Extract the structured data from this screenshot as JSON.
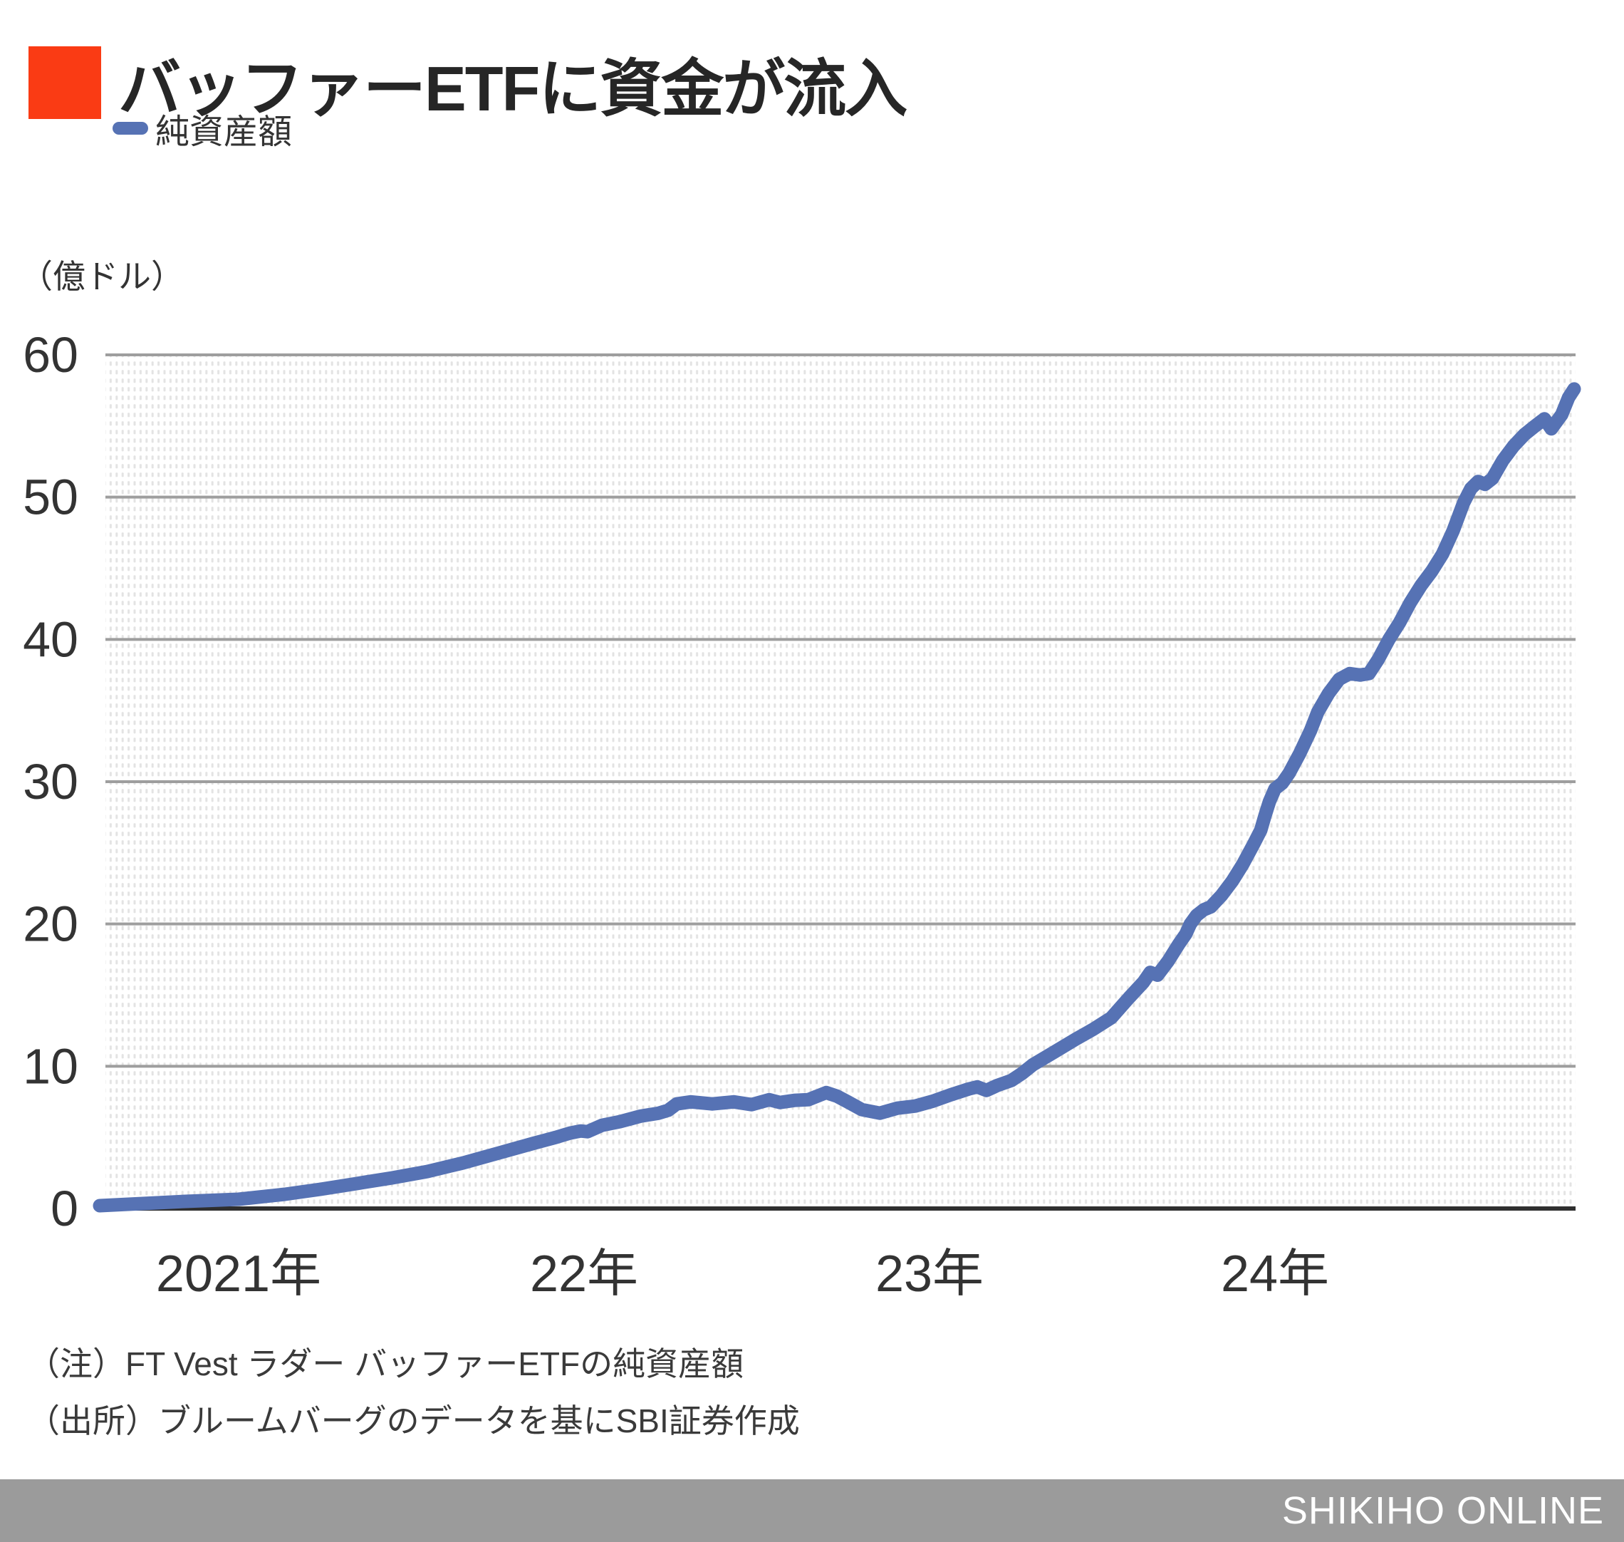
{
  "title": {
    "text": "バッファーETFに資金が流入"
  },
  "legend": {
    "label": "純資産額"
  },
  "y_axis_unit": "（億ドル）",
  "notes": [
    "（注）FT Vest ラダー バッファーETFの純資産額",
    "（出所）ブルームバーグのデータを基にSBI証券作成"
  ],
  "footer": {
    "brand": "SHIKIHO ONLINE"
  },
  "colors": {
    "title_square": "#fa3b14",
    "line": "#5672b4",
    "gridline": "#9e9e9e",
    "axis": "#2f2f2f",
    "dot_pattern": "#e3e3e3",
    "footer_bar": "#9b9b9b",
    "text": "#333333"
  },
  "chart_data": {
    "type": "line",
    "title": "バッファーETFに資金が流入",
    "ylabel": "（億ドル）",
    "xlabel": "",
    "ylim": [
      0,
      60
    ],
    "y_ticks": [
      0,
      10,
      20,
      30,
      40,
      50,
      60
    ],
    "grid": true,
    "legend_position": "top-left",
    "x_ticks": [
      {
        "label": "2021年",
        "year": 2021
      },
      {
        "label": "22年",
        "year": 2022
      },
      {
        "label": "23年",
        "year": 2023
      },
      {
        "label": "24年",
        "year": 2024
      }
    ],
    "series": [
      {
        "name": "純資産額",
        "color": "#5672b4",
        "points": [
          [
            2020.598,
            0.2
          ],
          [
            2020.722,
            0.35
          ],
          [
            2020.845,
            0.5
          ],
          [
            2021.0,
            0.65
          ],
          [
            2021.134,
            1.0
          ],
          [
            2021.237,
            1.35
          ],
          [
            2021.34,
            1.75
          ],
          [
            2021.443,
            2.15
          ],
          [
            2021.546,
            2.6
          ],
          [
            2021.649,
            3.2
          ],
          [
            2021.753,
            3.9
          ],
          [
            2021.856,
            4.6
          ],
          [
            2021.918,
            5.0
          ],
          [
            2021.959,
            5.3
          ],
          [
            2021.99,
            5.45
          ],
          [
            2022.01,
            5.4
          ],
          [
            2022.052,
            5.85
          ],
          [
            2022.103,
            6.1
          ],
          [
            2022.165,
            6.5
          ],
          [
            2022.216,
            6.7
          ],
          [
            2022.243,
            6.9
          ],
          [
            2022.268,
            7.35
          ],
          [
            2022.309,
            7.5
          ],
          [
            2022.371,
            7.35
          ],
          [
            2022.433,
            7.5
          ],
          [
            2022.485,
            7.3
          ],
          [
            2022.536,
            7.65
          ],
          [
            2022.567,
            7.45
          ],
          [
            2022.608,
            7.6
          ],
          [
            2022.649,
            7.65
          ],
          [
            2022.701,
            8.15
          ],
          [
            2022.732,
            7.9
          ],
          [
            2022.763,
            7.5
          ],
          [
            2022.804,
            6.95
          ],
          [
            2022.856,
            6.7
          ],
          [
            2022.907,
            7.05
          ],
          [
            2022.959,
            7.2
          ],
          [
            2023.01,
            7.55
          ],
          [
            2023.062,
            8.0
          ],
          [
            2023.113,
            8.4
          ],
          [
            2023.138,
            8.55
          ],
          [
            2023.165,
            8.3
          ],
          [
            2023.196,
            8.65
          ],
          [
            2023.237,
            9.0
          ],
          [
            2023.268,
            9.5
          ],
          [
            2023.299,
            10.1
          ],
          [
            2023.361,
            11.0
          ],
          [
            2023.423,
            11.9
          ],
          [
            2023.474,
            12.6
          ],
          [
            2023.526,
            13.4
          ],
          [
            2023.577,
            14.8
          ],
          [
            2023.619,
            15.9
          ],
          [
            2023.639,
            16.6
          ],
          [
            2023.66,
            16.4
          ],
          [
            2023.691,
            17.4
          ],
          [
            2023.722,
            18.6
          ],
          [
            2023.742,
            19.3
          ],
          [
            2023.755,
            20.0
          ],
          [
            2023.773,
            20.6
          ],
          [
            2023.794,
            21.0
          ],
          [
            2023.814,
            21.2
          ],
          [
            2023.845,
            22.0
          ],
          [
            2023.876,
            23.0
          ],
          [
            2023.907,
            24.2
          ],
          [
            2023.938,
            25.6
          ],
          [
            2023.959,
            26.6
          ],
          [
            2023.971,
            27.6
          ],
          [
            2023.984,
            28.6
          ],
          [
            2024.0,
            29.5
          ],
          [
            2024.021,
            29.9
          ],
          [
            2024.041,
            30.6
          ],
          [
            2024.072,
            32.0
          ],
          [
            2024.103,
            33.6
          ],
          [
            2024.124,
            34.9
          ],
          [
            2024.155,
            36.2
          ],
          [
            2024.186,
            37.2
          ],
          [
            2024.216,
            37.6
          ],
          [
            2024.247,
            37.5
          ],
          [
            2024.272,
            37.6
          ],
          [
            2024.299,
            38.6
          ],
          [
            2024.33,
            40.0
          ],
          [
            2024.361,
            41.2
          ],
          [
            2024.392,
            42.6
          ],
          [
            2024.423,
            43.8
          ],
          [
            2024.454,
            44.8
          ],
          [
            2024.485,
            46.0
          ],
          [
            2024.515,
            47.6
          ],
          [
            2024.546,
            49.6
          ],
          [
            2024.567,
            50.6
          ],
          [
            2024.588,
            51.1
          ],
          [
            2024.608,
            50.9
          ],
          [
            2024.629,
            51.3
          ],
          [
            2024.66,
            52.6
          ],
          [
            2024.691,
            53.6
          ],
          [
            2024.722,
            54.4
          ],
          [
            2024.753,
            55.0
          ],
          [
            2024.78,
            55.5
          ],
          [
            2024.8,
            54.8
          ],
          [
            2024.83,
            55.8
          ],
          [
            2024.85,
            57.0
          ],
          [
            2024.866,
            57.6
          ]
        ]
      }
    ]
  }
}
